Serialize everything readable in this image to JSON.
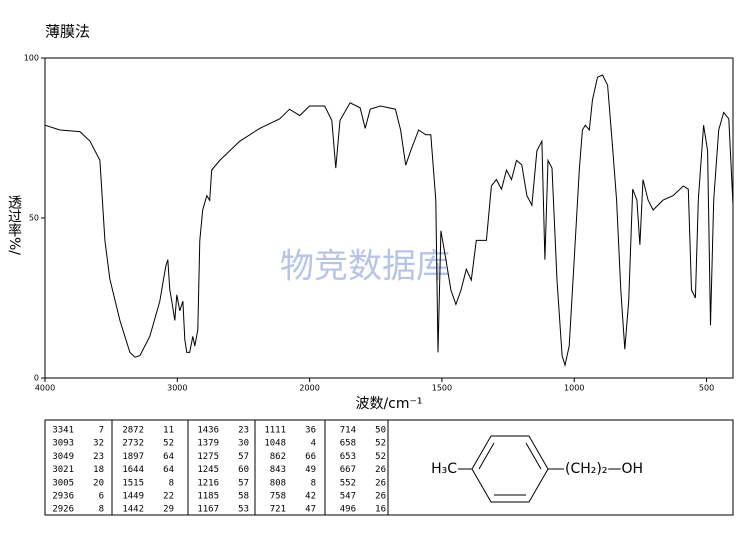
{
  "chart_data": {
    "type": "line",
    "title": "薄膜法",
    "xlabel": "波数/cm⁻¹",
    "ylabel": "透过率%/",
    "watermark": "物竞数据库",
    "color": "#000000",
    "xlim": [
      4000,
      400
    ],
    "ylim": [
      0,
      100
    ],
    "xticks": [
      4000,
      3000,
      2000,
      1500,
      1000,
      500
    ],
    "yticks": [
      0,
      50,
      100
    ],
    "x": [
      4000,
      3887,
      3736,
      3660,
      3585,
      3547,
      3510,
      3434,
      3358,
      3320,
      3283,
      3208,
      3132,
      3087,
      3072,
      3057,
      3042,
      3019,
      3004,
      2981,
      2958,
      2943,
      2928,
      2906,
      2883,
      2868,
      2845,
      2830,
      2808,
      2777,
      2755,
      2740,
      2679,
      2528,
      2377,
      2226,
      2151,
      2075,
      2000,
      1943,
      1916,
      1901,
      1885,
      1847,
      1809,
      1790,
      1771,
      1733,
      1676,
      1656,
      1637,
      1618,
      1588,
      1561,
      1542,
      1523,
      1515,
      1504,
      1485,
      1466,
      1447,
      1428,
      1408,
      1389,
      1370,
      1332,
      1313,
      1294,
      1275,
      1256,
      1237,
      1218,
      1198,
      1179,
      1160,
      1141,
      1122,
      1111,
      1099,
      1084,
      1065,
      1046,
      1035,
      1019,
      1000,
      981,
      969,
      958,
      943,
      931,
      912,
      893,
      874,
      855,
      840,
      824,
      809,
      794,
      779,
      763,
      752,
      740,
      721,
      702,
      664,
      626,
      588,
      569,
      557,
      542,
      531,
      511,
      496,
      485,
      473,
      454,
      435,
      416,
      400
    ],
    "values": [
      79,
      77.5,
      77,
      74,
      68,
      43,
      31,
      18,
      8,
      6.5,
      7,
      13,
      24,
      35,
      37,
      27.5,
      24,
      18,
      26,
      21,
      24,
      12,
      8,
      8,
      13,
      10,
      15,
      43,
      52.5,
      57,
      55.5,
      65,
      68,
      74,
      78,
      81,
      84,
      82,
      85,
      85,
      80.5,
      65.6,
      80.5,
      86,
      84.4,
      78,
      84,
      85,
      84,
      77.5,
      66.5,
      71,
      77.5,
      76,
      76,
      55.6,
      8,
      46,
      37,
      27.5,
      23,
      27.5,
      34,
      30.6,
      43,
      43,
      60,
      62,
      59,
      65,
      62,
      68,
      66.6,
      57,
      54,
      71,
      74,
      37,
      68,
      65.6,
      30.6,
      7,
      4,
      10,
      37,
      65,
      77.5,
      79,
      77.5,
      87,
      94,
      94.7,
      91.5,
      72,
      55.6,
      27.5,
      9,
      24,
      59,
      55.6,
      41.6,
      62,
      55.6,
      52.5,
      55.6,
      57,
      60,
      59,
      27.5,
      25,
      55.6,
      79,
      71,
      16.5,
      55.6,
      77.5,
      83,
      81,
      54
    ]
  },
  "peak_table": [
    [
      [
        3341,
        7
      ],
      [
        3093,
        32
      ],
      [
        3049,
        23
      ],
      [
        3021,
        18
      ],
      [
        3005,
        20
      ],
      [
        2936,
        6
      ],
      [
        2926,
        8
      ]
    ],
    [
      [
        2872,
        11
      ],
      [
        2732,
        52
      ],
      [
        1897,
        64
      ],
      [
        1644,
        64
      ],
      [
        1515,
        8
      ],
      [
        1449,
        22
      ],
      [
        1442,
        29
      ]
    ],
    [
      [
        1436,
        23
      ],
      [
        1379,
        30
      ],
      [
        1275,
        57
      ],
      [
        1245,
        60
      ],
      [
        1216,
        57
      ],
      [
        1185,
        58
      ],
      [
        1167,
        53
      ]
    ],
    [
      [
        1111,
        36
      ],
      [
        1048,
        4
      ],
      [
        862,
        66
      ],
      [
        843,
        49
      ],
      [
        808,
        8
      ],
      [
        758,
        42
      ],
      [
        721,
        47
      ]
    ],
    [
      [
        714,
        50
      ],
      [
        658,
        52
      ],
      [
        653,
        52
      ],
      [
        667,
        26
      ],
      [
        552,
        26
      ],
      [
        547,
        26
      ],
      [
        496,
        16
      ]
    ]
  ],
  "structure": {
    "left": "H₃C",
    "right": "(CH₂)₂—OH"
  }
}
